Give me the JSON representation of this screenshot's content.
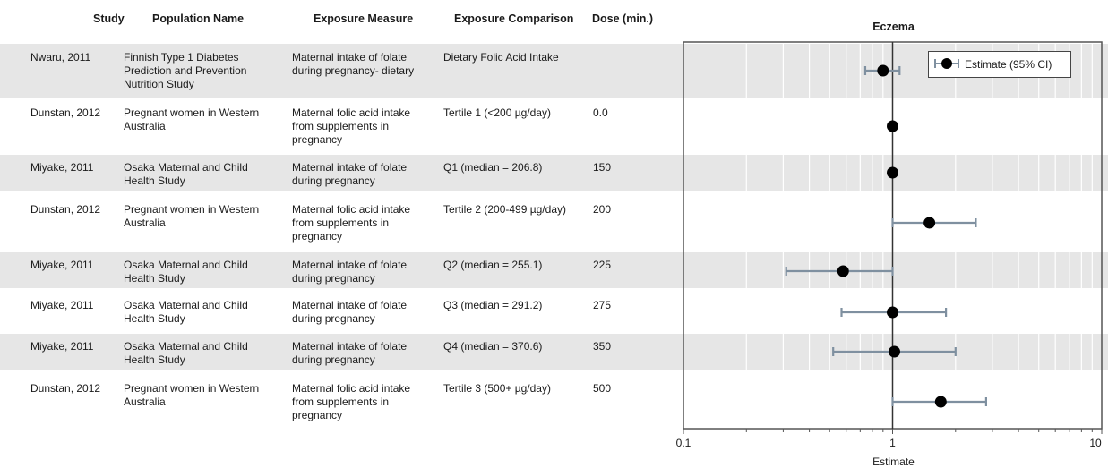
{
  "table": {
    "headers": {
      "study": "Study",
      "population": "Population Name",
      "exposure": "Exposure Measure",
      "comparison": "Exposure Comparison",
      "dose": "Dose (min.)"
    },
    "rows": [
      {
        "study": "Nwaru, 2011",
        "population": "Finnish Type 1 Diabetes\nPrediction and Prevention\nNutrition Study",
        "exposure": "Maternal intake of folate\nduring pregnancy- dietary",
        "comparison": "Dietary Folic Acid Intake",
        "dose": ""
      },
      {
        "study": "Dunstan, 2012",
        "population": "Pregnant women in Western\nAustralia",
        "exposure": "Maternal folic acid intake\nfrom supplements in\npregnancy",
        "comparison": "Tertile 1 (<200 µg/day)",
        "dose": "0.0"
      },
      {
        "study": "Miyake, 2011",
        "population": "Osaka Maternal and Child\nHealth Study",
        "exposure": "Maternal intake of folate\nduring pregnancy",
        "comparison": "Q1 (median = 206.8)",
        "dose": "150"
      },
      {
        "study": "Dunstan, 2012",
        "population": "Pregnant women in Western\nAustralia",
        "exposure": "Maternal folic acid intake\nfrom supplements in\npregnancy",
        "comparison": "Tertile 2 (200-499 µg/day)",
        "dose": "200"
      },
      {
        "study": "Miyake, 2011",
        "population": "Osaka Maternal and Child\nHealth Study",
        "exposure": "Maternal intake of folate\nduring pregnancy",
        "comparison": "Q2 (median = 255.1)",
        "dose": "225"
      },
      {
        "study": "Miyake, 2011",
        "population": "Osaka Maternal and Child\nHealth Study",
        "exposure": "Maternal intake of folate\nduring pregnancy",
        "comparison": "Q3 (median = 291.2)",
        "dose": "275"
      },
      {
        "study": "Miyake, 2011",
        "population": "Osaka Maternal and Child\nHealth Study",
        "exposure": "Maternal intake of folate\nduring pregnancy",
        "comparison": "Q4 (median = 370.6)",
        "dose": "350"
      },
      {
        "study": "Dunstan, 2012",
        "population": "Pregnant women in Western\nAustralia",
        "exposure": "Maternal folic acid intake\nfrom supplements in\npregnancy",
        "comparison": "Tertile 3 (500+ µg/day)",
        "dose": "500"
      }
    ]
  },
  "chart_data": {
    "type": "scatter",
    "title": "Eczema",
    "xlabel": "Estimate",
    "x_scale": "log",
    "xlim": [
      0.1,
      10
    ],
    "x_ticks": [
      "0.1",
      "1",
      "10"
    ],
    "reference_line": 1,
    "legend": {
      "label": "Estimate (95% CI)",
      "placement": "top-right"
    },
    "series": [
      {
        "name": "Estimate (95% CI)",
        "points": [
          {
            "estimate": 0.9,
            "lower": 0.74,
            "upper": 1.08
          },
          {
            "estimate": 1.0,
            "lower": 1.0,
            "upper": 1.0
          },
          {
            "estimate": 1.0,
            "lower": 1.0,
            "upper": 1.0
          },
          {
            "estimate": 1.5,
            "lower": 1.0,
            "upper": 2.5
          },
          {
            "estimate": 0.58,
            "lower": 0.31,
            "upper": 1.0
          },
          {
            "estimate": 1.0,
            "lower": 0.57,
            "upper": 1.8
          },
          {
            "estimate": 1.02,
            "lower": 0.52,
            "upper": 2.0
          },
          {
            "estimate": 1.7,
            "lower": 1.0,
            "upper": 2.8
          }
        ]
      }
    ]
  },
  "colors": {
    "band": "#e6e6e6",
    "ci_line": "#7f90a0",
    "marker": "#000000",
    "grid": "#ffffff",
    "frame": "#555555"
  }
}
